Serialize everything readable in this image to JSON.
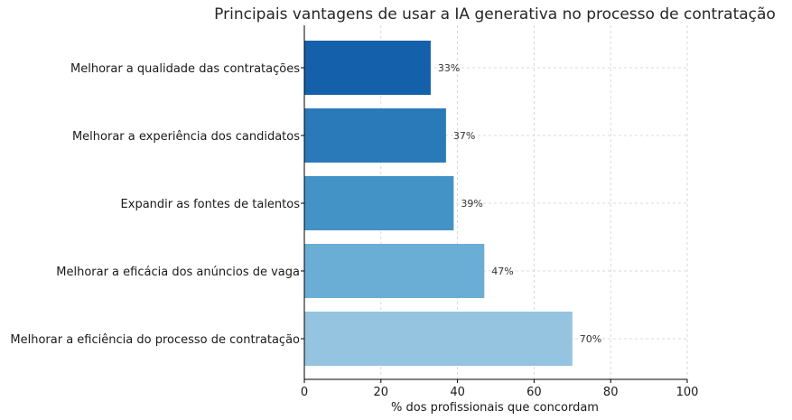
{
  "chart_data": {
    "type": "bar",
    "orientation": "horizontal",
    "title": "Principais vantagens de usar a IA generativa no processo de contratação",
    "xlabel": "% dos profissionais que concordam",
    "ylabel": "",
    "xlim": [
      0,
      100
    ],
    "xticks": [
      0,
      20,
      40,
      60,
      80,
      100
    ],
    "grid": true,
    "categories": [
      "Melhorar a qualidade das contratações",
      "Melhorar a experiência dos candidatos",
      "Expandir as fontes de talentos",
      "Melhorar a eficácia dos anúncios de vaga",
      "Melhorar a eficiência do processo de contratação"
    ],
    "values": [
      33,
      37,
      39,
      47,
      70
    ],
    "data_labels": [
      "33%",
      "37%",
      "39%",
      "47%",
      "70%"
    ],
    "colors": [
      "#1460aa",
      "#2a7aba",
      "#4493c6",
      "#6aaed6",
      "#94c4df"
    ]
  }
}
